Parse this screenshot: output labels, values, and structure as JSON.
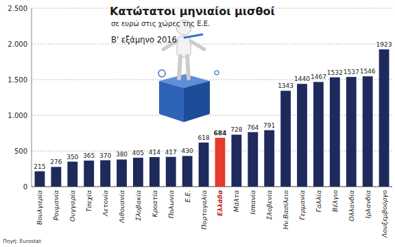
{
  "chart_data": {
    "type": "bar",
    "title": "Κατώτατοι μηνιαίοι μισθοί",
    "subtitle": "σε ευρώ στις χώρες της Ε.Ε.",
    "annotations": [
      "Β' εξάμηνο 2016",
      "Πηγή: Eurostat"
    ],
    "categories": [
      "Βουλγαρία",
      "Ρουμανία",
      "Ουγγαρία",
      "Τσεχία",
      "Λετονία",
      "Λιθουανία",
      "Σλοβακία",
      "Κροατία",
      "Πολωνία",
      "Ε.Ε.",
      "Πορτογαλία",
      "Ελλάδα",
      "Μάλτα",
      "Ισπανία",
      "Σλοβενία",
      "Ην.Βασίλειο",
      "Γερμανία",
      "Γαλλία",
      "Βέλγιο",
      "Ολλανδία",
      "Ιρλανδία",
      "Λουξεμβούργο"
    ],
    "values": [
      215,
      276,
      350,
      365,
      370,
      380,
      405,
      414,
      417,
      430,
      618,
      684,
      728,
      764,
      791,
      1343,
      1440,
      1467,
      1532,
      1537,
      1546,
      1923
    ],
    "color": "#1f2a5c",
    "colors": [
      "#1f2a5c",
      "#1f2a5c",
      "#1f2a5c",
      "#1f2a5c",
      "#1f2a5c",
      "#1f2a5c",
      "#1f2a5c",
      "#1f2a5c",
      "#1f2a5c",
      "#1f2a5c",
      "#1f2a5c",
      "#e63a2e",
      "#1f2a5c",
      "#1f2a5c",
      "#1f2a5c",
      "#1f2a5c",
      "#1f2a5c",
      "#1f2a5c",
      "#1f2a5c",
      "#1f2a5c",
      "#1f2a5c",
      "#1f2a5c"
    ],
    "ylim": [
      0,
      2500
    ],
    "yticks": [
      0,
      500,
      {
        "value": 1000,
        "label": "1.000"
      },
      {
        "value": 1500,
        "label": "1.500"
      },
      {
        "value": 2000,
        "label": "2.000"
      },
      {
        "value": 2500,
        "label": "2.500"
      }
    ],
    "grid": true,
    "data_labels": true
  }
}
